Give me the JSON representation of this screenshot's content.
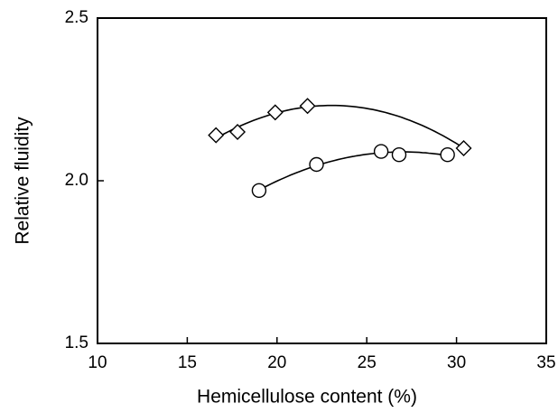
{
  "chart_data": {
    "type": "scatter",
    "x_label": "Hemicellulose content (%)",
    "y_label": "Relative fluidity",
    "xlim": [
      10,
      35
    ],
    "xticks": [
      10,
      15,
      20,
      25,
      30,
      35
    ],
    "ylim": [
      1.5,
      2.5
    ],
    "yticks": [
      1.5,
      {
        "value": 2,
        "label": "2.0"
      },
      2.5
    ],
    "series": [
      {
        "marker": "diamond",
        "color": "#000000",
        "x": [
          16.6,
          17.8,
          19.9,
          21.7,
          30.4
        ],
        "values": [
          2.14,
          2.15,
          2.21,
          2.23,
          2.1
        ]
      },
      {
        "marker": "circle",
        "color": "#000000",
        "x": [
          19.0,
          22.2,
          25.8,
          26.8,
          29.5
        ],
        "values": [
          1.97,
          2.05,
          2.09,
          2.08,
          2.08
        ]
      }
    ]
  }
}
